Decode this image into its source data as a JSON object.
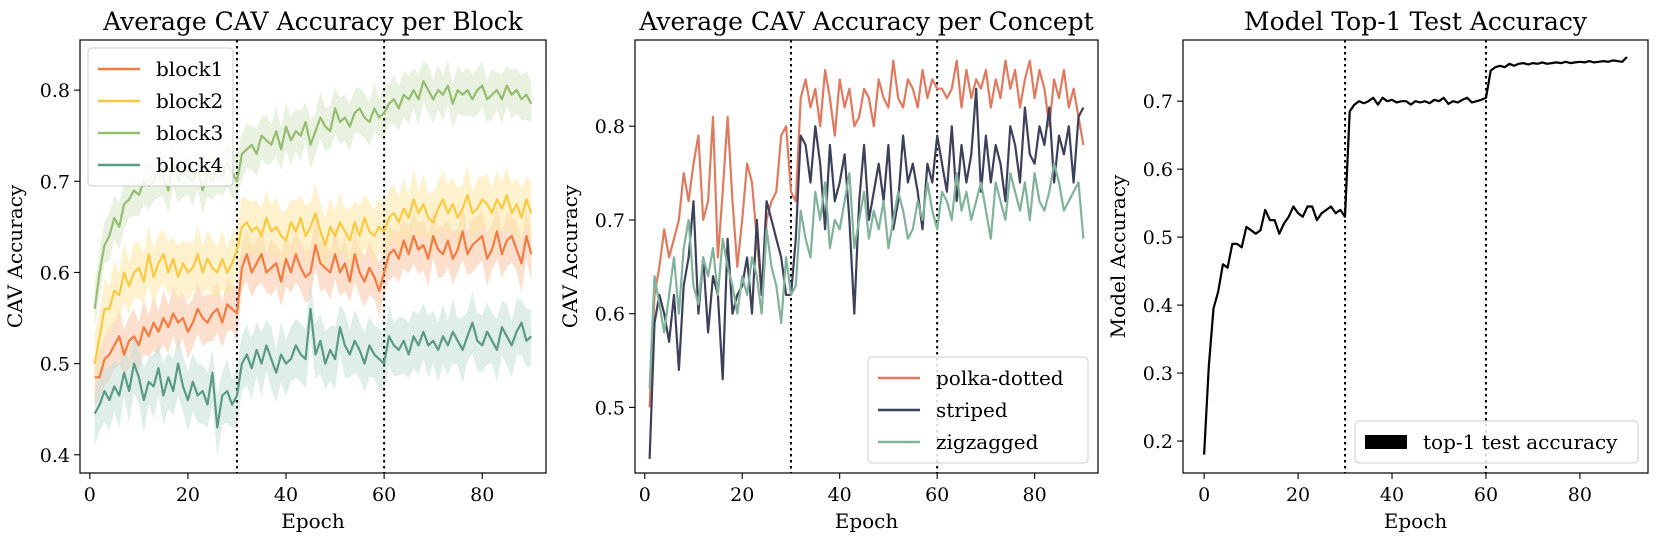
{
  "chart_data": [
    {
      "type": "line",
      "title": "Average CAV Accuracy per Block",
      "xlabel": "Epoch",
      "ylabel": "CAV Accuracy",
      "xlim": [
        -2,
        93
      ],
      "ylim": [
        0.38,
        0.855
      ],
      "xticks": [
        0,
        20,
        40,
        60,
        80
      ],
      "yticks": [
        0.4,
        0.5,
        0.6,
        0.7,
        0.8
      ],
      "ytick_labels": [
        "0.4",
        "0.5",
        "0.6",
        "0.7",
        "0.8"
      ],
      "vlines": [
        30,
        60
      ],
      "legend_position": "upper-left",
      "x_start": 1,
      "series": [
        {
          "name": "block1",
          "color": "#f47b3f",
          "band_color": "#fbc4a4",
          "band_halfwidth": 0.025,
          "values": [
            0.485,
            0.485,
            0.505,
            0.51,
            0.52,
            0.53,
            0.51,
            0.525,
            0.53,
            0.52,
            0.54,
            0.53,
            0.545,
            0.535,
            0.55,
            0.54,
            0.555,
            0.545,
            0.55,
            0.535,
            0.545,
            0.56,
            0.55,
            0.545,
            0.555,
            0.56,
            0.545,
            0.565,
            0.56,
            0.555,
            0.605,
            0.62,
            0.6,
            0.61,
            0.62,
            0.6,
            0.605,
            0.61,
            0.59,
            0.615,
            0.6,
            0.62,
            0.605,
            0.595,
            0.6,
            0.63,
            0.61,
            0.605,
            0.6,
            0.62,
            0.6,
            0.61,
            0.59,
            0.62,
            0.6,
            0.59,
            0.605,
            0.595,
            0.58,
            0.6,
            0.62,
            0.625,
            0.615,
            0.635,
            0.62,
            0.64,
            0.625,
            0.63,
            0.615,
            0.64,
            0.625,
            0.62,
            0.635,
            0.615,
            0.625,
            0.645,
            0.62,
            0.63,
            0.635,
            0.64,
            0.615,
            0.625,
            0.645,
            0.62,
            0.635,
            0.64,
            0.625,
            0.61,
            0.64,
            0.62
          ]
        },
        {
          "name": "block2",
          "color": "#f9c940",
          "band_color": "#fde7a6",
          "band_halfwidth": 0.028,
          "values": [
            0.5,
            0.53,
            0.56,
            0.56,
            0.58,
            0.575,
            0.6,
            0.585,
            0.6,
            0.605,
            0.59,
            0.62,
            0.595,
            0.61,
            0.62,
            0.6,
            0.615,
            0.595,
            0.61,
            0.6,
            0.605,
            0.62,
            0.6,
            0.615,
            0.605,
            0.6,
            0.615,
            0.6,
            0.61,
            0.625,
            0.65,
            0.655,
            0.645,
            0.65,
            0.64,
            0.66,
            0.645,
            0.65,
            0.64,
            0.635,
            0.655,
            0.645,
            0.66,
            0.64,
            0.65,
            0.665,
            0.645,
            0.63,
            0.65,
            0.64,
            0.655,
            0.645,
            0.635,
            0.655,
            0.64,
            0.66,
            0.645,
            0.64,
            0.65,
            0.645,
            0.66,
            0.665,
            0.655,
            0.67,
            0.66,
            0.68,
            0.665,
            0.675,
            0.66,
            0.655,
            0.67,
            0.68,
            0.665,
            0.675,
            0.66,
            0.67,
            0.685,
            0.665,
            0.67,
            0.68,
            0.675,
            0.665,
            0.68,
            0.67,
            0.685,
            0.665,
            0.675,
            0.66,
            0.68,
            0.665
          ]
        },
        {
          "name": "block3",
          "color": "#95bd6f",
          "band_color": "#d7e8c7",
          "band_halfwidth": 0.022,
          "values": [
            0.56,
            0.6,
            0.63,
            0.64,
            0.66,
            0.65,
            0.675,
            0.68,
            0.69,
            0.685,
            0.7,
            0.695,
            0.7,
            0.71,
            0.705,
            0.69,
            0.72,
            0.7,
            0.71,
            0.705,
            0.7,
            0.715,
            0.69,
            0.71,
            0.7,
            0.715,
            0.705,
            0.72,
            0.71,
            0.7,
            0.73,
            0.735,
            0.74,
            0.73,
            0.75,
            0.745,
            0.74,
            0.755,
            0.735,
            0.76,
            0.745,
            0.755,
            0.75,
            0.765,
            0.74,
            0.755,
            0.77,
            0.76,
            0.755,
            0.78,
            0.765,
            0.77,
            0.76,
            0.775,
            0.78,
            0.77,
            0.765,
            0.78,
            0.77,
            0.775,
            0.785,
            0.79,
            0.78,
            0.795,
            0.79,
            0.8,
            0.79,
            0.81,
            0.8,
            0.79,
            0.8,
            0.795,
            0.805,
            0.785,
            0.8,
            0.795,
            0.8,
            0.79,
            0.8,
            0.805,
            0.79,
            0.795,
            0.8,
            0.79,
            0.805,
            0.795,
            0.8,
            0.79,
            0.795,
            0.785
          ]
        },
        {
          "name": "block4",
          "color": "#5a9a85",
          "band_color": "#c6e0d8",
          "band_halfwidth": 0.03,
          "values": [
            0.445,
            0.455,
            0.47,
            0.46,
            0.475,
            0.465,
            0.49,
            0.47,
            0.5,
            0.485,
            0.46,
            0.48,
            0.475,
            0.495,
            0.465,
            0.485,
            0.47,
            0.5,
            0.475,
            0.46,
            0.48,
            0.465,
            0.47,
            0.455,
            0.49,
            0.43,
            0.465,
            0.47,
            0.455,
            0.465,
            0.5,
            0.51,
            0.495,
            0.515,
            0.5,
            0.52,
            0.505,
            0.49,
            0.51,
            0.5,
            0.505,
            0.52,
            0.51,
            0.505,
            0.56,
            0.51,
            0.525,
            0.5,
            0.515,
            0.505,
            0.54,
            0.52,
            0.51,
            0.525,
            0.515,
            0.5,
            0.52,
            0.51,
            0.505,
            0.5,
            0.53,
            0.52,
            0.515,
            0.525,
            0.51,
            0.53,
            0.52,
            0.535,
            0.52,
            0.525,
            0.515,
            0.53,
            0.52,
            0.535,
            0.525,
            0.515,
            0.53,
            0.545,
            0.525,
            0.52,
            0.535,
            0.525,
            0.515,
            0.54,
            0.53,
            0.52,
            0.535,
            0.545,
            0.525,
            0.53
          ]
        }
      ]
    },
    {
      "type": "line",
      "title": "Average CAV Accuracy per Concept",
      "xlabel": "Epoch",
      "ylabel": "CAV Accuracy",
      "xlim": [
        -2,
        93
      ],
      "ylim": [
        0.43,
        0.892
      ],
      "xticks": [
        0,
        20,
        40,
        60,
        80
      ],
      "yticks": [
        0.5,
        0.6,
        0.7,
        0.8
      ],
      "ytick_labels": [
        "0.5",
        "0.6",
        "0.7",
        "0.8"
      ],
      "vlines": [
        30,
        60
      ],
      "legend_position": "lower-right",
      "x_start": 1,
      "series": [
        {
          "name": "polka-dotted",
          "color": "#e07a5f",
          "values": [
            0.5,
            0.62,
            0.65,
            0.69,
            0.66,
            0.68,
            0.7,
            0.75,
            0.72,
            0.76,
            0.79,
            0.7,
            0.72,
            0.81,
            0.66,
            0.73,
            0.81,
            0.72,
            0.65,
            0.7,
            0.76,
            0.74,
            0.68,
            0.62,
            0.7,
            0.72,
            0.73,
            0.79,
            0.8,
            0.73,
            0.72,
            0.83,
            0.85,
            0.82,
            0.84,
            0.8,
            0.86,
            0.83,
            0.79,
            0.85,
            0.82,
            0.84,
            0.8,
            0.81,
            0.84,
            0.83,
            0.8,
            0.85,
            0.83,
            0.82,
            0.87,
            0.83,
            0.82,
            0.85,
            0.84,
            0.82,
            0.86,
            0.83,
            0.85,
            0.84,
            0.84,
            0.83,
            0.84,
            0.87,
            0.82,
            0.86,
            0.83,
            0.85,
            0.84,
            0.86,
            0.82,
            0.85,
            0.83,
            0.87,
            0.84,
            0.86,
            0.82,
            0.85,
            0.87,
            0.83,
            0.86,
            0.84,
            0.8,
            0.85,
            0.83,
            0.86,
            0.82,
            0.84,
            0.81,
            0.78
          ]
        },
        {
          "name": "striped",
          "color": "#3d405b",
          "values": [
            0.445,
            0.59,
            0.62,
            0.6,
            0.57,
            0.62,
            0.54,
            0.63,
            0.66,
            0.72,
            0.6,
            0.66,
            0.58,
            0.64,
            0.62,
            0.53,
            0.68,
            0.6,
            0.62,
            0.63,
            0.66,
            0.6,
            0.7,
            0.62,
            0.72,
            0.7,
            0.68,
            0.66,
            0.62,
            0.62,
            0.68,
            0.79,
            0.78,
            0.74,
            0.8,
            0.76,
            0.69,
            0.78,
            0.72,
            0.74,
            0.77,
            0.7,
            0.6,
            0.72,
            0.78,
            0.7,
            0.73,
            0.76,
            0.72,
            0.78,
            0.69,
            0.72,
            0.79,
            0.74,
            0.76,
            0.73,
            0.69,
            0.76,
            0.74,
            0.79,
            0.76,
            0.73,
            0.8,
            0.72,
            0.78,
            0.74,
            0.77,
            0.84,
            0.73,
            0.79,
            0.74,
            0.78,
            0.76,
            0.72,
            0.8,
            0.78,
            0.74,
            0.82,
            0.77,
            0.76,
            0.8,
            0.78,
            0.82,
            0.74,
            0.79,
            0.77,
            0.8,
            0.74,
            0.81,
            0.82
          ]
        },
        {
          "name": "zigzagged",
          "color": "#81b29a",
          "values": [
            0.52,
            0.64,
            0.61,
            0.58,
            0.62,
            0.66,
            0.6,
            0.67,
            0.7,
            0.63,
            0.61,
            0.66,
            0.64,
            0.67,
            0.62,
            0.68,
            0.65,
            0.63,
            0.6,
            0.64,
            0.62,
            0.66,
            0.64,
            0.6,
            0.69,
            0.65,
            0.63,
            0.59,
            0.66,
            0.62,
            0.63,
            0.71,
            0.68,
            0.66,
            0.73,
            0.7,
            0.74,
            0.67,
            0.7,
            0.69,
            0.72,
            0.75,
            0.67,
            0.7,
            0.73,
            0.68,
            0.71,
            0.69,
            0.72,
            0.67,
            0.7,
            0.73,
            0.71,
            0.68,
            0.69,
            0.72,
            0.7,
            0.74,
            0.71,
            0.69,
            0.73,
            0.72,
            0.7,
            0.75,
            0.71,
            0.73,
            0.7,
            0.72,
            0.74,
            0.71,
            0.68,
            0.74,
            0.72,
            0.7,
            0.75,
            0.73,
            0.71,
            0.74,
            0.7,
            0.75,
            0.72,
            0.71,
            0.73,
            0.76,
            0.74,
            0.71,
            0.72,
            0.73,
            0.74,
            0.68
          ]
        }
      ]
    },
    {
      "type": "line",
      "title": "Model Top-1 Test Accuracy",
      "xlabel": "Epoch",
      "ylabel": "Model Accuracy",
      "xlim": [
        -4.5,
        94.5
      ],
      "ylim": [
        0.153,
        0.79
      ],
      "xticks": [
        0,
        20,
        40,
        60,
        80
      ],
      "yticks": [
        0.2,
        0.3,
        0.4,
        0.5,
        0.6,
        0.7
      ],
      "ytick_labels": [
        "0.2",
        "0.3",
        "0.4",
        "0.5",
        "0.6",
        "0.7"
      ],
      "vlines": [
        30,
        60
      ],
      "legend_position": "lower-right",
      "x_start": 0,
      "series": [
        {
          "name": "top-1 test accuracy",
          "color": "#000000",
          "values": [
            0.18,
            0.31,
            0.395,
            0.42,
            0.46,
            0.455,
            0.49,
            0.49,
            0.485,
            0.515,
            0.51,
            0.505,
            0.51,
            0.54,
            0.525,
            0.525,
            0.505,
            0.52,
            0.53,
            0.545,
            0.535,
            0.53,
            0.545,
            0.545,
            0.525,
            0.535,
            0.54,
            0.545,
            0.535,
            0.54,
            0.53,
            0.685,
            0.695,
            0.7,
            0.697,
            0.7,
            0.705,
            0.695,
            0.705,
            0.7,
            0.702,
            0.698,
            0.7,
            0.7,
            0.695,
            0.7,
            0.698,
            0.7,
            0.697,
            0.702,
            0.7,
            0.705,
            0.696,
            0.7,
            0.698,
            0.702,
            0.705,
            0.698,
            0.7,
            0.702,
            0.705,
            0.745,
            0.75,
            0.752,
            0.75,
            0.755,
            0.752,
            0.755,
            0.756,
            0.754,
            0.756,
            0.755,
            0.757,
            0.755,
            0.756,
            0.757,
            0.756,
            0.758,
            0.756,
            0.757,
            0.758,
            0.757,
            0.759,
            0.757,
            0.758,
            0.759,
            0.758,
            0.76,
            0.759,
            0.758,
            0.765
          ]
        }
      ]
    }
  ]
}
